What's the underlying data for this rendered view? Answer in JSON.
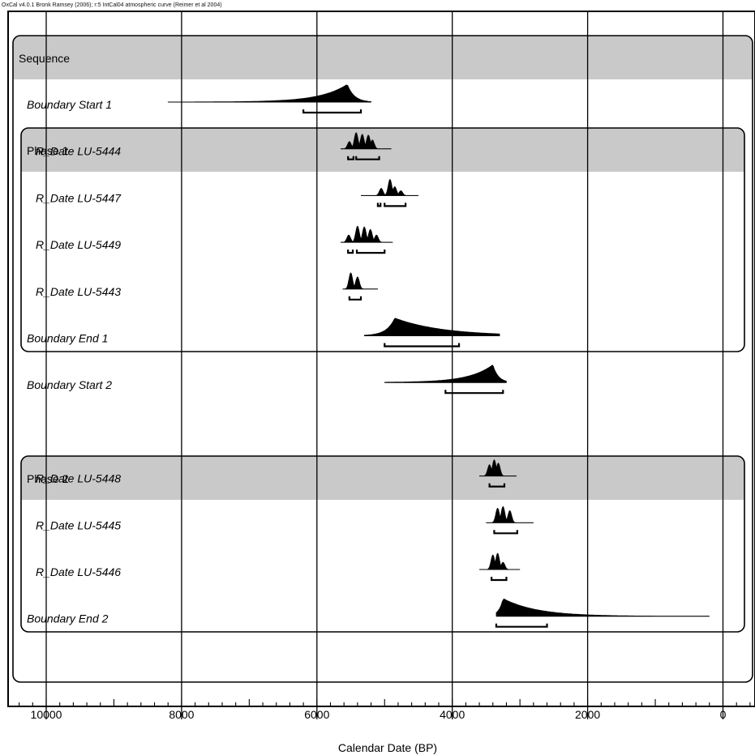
{
  "header": {
    "credit": "OxCal v4.0.1 Bronk Ramsey (2006); r:5 IntCal04 atmospheric curve (Reimer et al 2004)"
  },
  "chart_data": {
    "type": "area",
    "xlabel": "Calendar Date (BP)",
    "xlim": [
      10400,
      -500
    ],
    "x_reversed": true,
    "x_ticks": [
      10000,
      8000,
      6000,
      4000,
      2000,
      0
    ],
    "x_tick_labels": [
      "10000",
      "8000",
      "6000",
      "4000",
      "2000",
      "0"
    ],
    "grid": true,
    "groups": [
      {
        "label": "Sequence",
        "first_row": 0,
        "last_row": 12,
        "level": 0
      },
      {
        "label": "Phase 1",
        "first_row": 1,
        "last_row": 4,
        "level": 1
      },
      {
        "label": "Phase 2",
        "first_row": 8,
        "last_row": 10,
        "level": 1
      }
    ],
    "items": [
      {
        "name": "Boundary Start 1",
        "kind": "boundary",
        "level": 0,
        "line": [
          8200,
          5200
        ],
        "peak": 5550,
        "spread_old": 400,
        "spread_young": 100,
        "ranges": [
          [
            6200,
            5350
          ]
        ]
      },
      {
        "name": "R_Date LU-5444",
        "kind": "date",
        "level": 1,
        "line": [
          5650,
          4900
        ],
        "peaks": [
          [
            5520,
            0.45
          ],
          [
            5420,
            1.0
          ],
          [
            5330,
            0.9
          ],
          [
            5240,
            0.85
          ],
          [
            5180,
            0.55
          ]
        ],
        "ranges": [
          [
            5540,
            5460
          ],
          [
            5420,
            5080
          ]
        ]
      },
      {
        "name": "R_Date LU-5447",
        "kind": "date",
        "level": 1,
        "line": [
          5350,
          4500
        ],
        "peaks": [
          [
            5050,
            0.45
          ],
          [
            4920,
            1.0
          ],
          [
            4850,
            0.55
          ],
          [
            4760,
            0.3
          ]
        ],
        "ranges": [
          [
            5100,
            5060
          ],
          [
            5000,
            4690
          ]
        ]
      },
      {
        "name": "R_Date LU-5449",
        "kind": "date",
        "level": 1,
        "line": [
          5650,
          4880
        ],
        "peaks": [
          [
            5530,
            0.45
          ],
          [
            5400,
            1.0
          ],
          [
            5300,
            0.95
          ],
          [
            5210,
            0.8
          ],
          [
            5120,
            0.45
          ]
        ],
        "ranges": [
          [
            5540,
            5470
          ],
          [
            5410,
            5000
          ]
        ]
      },
      {
        "name": "R_Date LU-5443",
        "kind": "date",
        "level": 1,
        "line": [
          5620,
          5100
        ],
        "peaks": [
          [
            5500,
            1.0
          ],
          [
            5400,
            0.75
          ]
        ],
        "ranges": [
          [
            5520,
            5350
          ]
        ]
      },
      {
        "name": "Boundary End 1",
        "kind": "boundary",
        "level": 0,
        "line": [
          5300,
          3300
        ],
        "peak": 4850,
        "spread_old": 120,
        "spread_young": 700,
        "ranges": [
          [
            5000,
            3900
          ]
        ]
      },
      {
        "name": "Boundary Start 2",
        "kind": "boundary",
        "level": 0,
        "line": [
          5000,
          3200
        ],
        "peak": 3400,
        "spread_old": 350,
        "spread_young": 80,
        "ranges": [
          [
            4100,
            3250
          ]
        ]
      },
      {
        "name": "Phase 2",
        "kind": "phase-header",
        "level": 1
      },
      {
        "name": "R_Date LU-5448",
        "kind": "date",
        "level": 1,
        "line": [
          3600,
          3050
        ],
        "peaks": [
          [
            3450,
            0.7
          ],
          [
            3380,
            1.0
          ],
          [
            3320,
            0.8
          ]
        ],
        "ranges": [
          [
            3450,
            3230
          ]
        ]
      },
      {
        "name": "R_Date LU-5445",
        "kind": "date",
        "level": 1,
        "line": [
          3500,
          2800
        ],
        "peaks": [
          [
            3330,
            0.9
          ],
          [
            3250,
            1.0
          ],
          [
            3150,
            0.75
          ]
        ],
        "ranges": [
          [
            3380,
            3040
          ]
        ]
      },
      {
        "name": "R_Date LU-5446",
        "kind": "date",
        "level": 1,
        "line": [
          3600,
          3000
        ],
        "peaks": [
          [
            3400,
            0.9
          ],
          [
            3330,
            1.0
          ],
          [
            3250,
            0.45
          ]
        ],
        "ranges": [
          [
            3420,
            3200
          ]
        ]
      },
      {
        "name": "Boundary End 2",
        "kind": "boundary",
        "level": 0,
        "line": [
          3350,
          200
        ],
        "peak": 3250,
        "spread_old": 60,
        "spread_young": 500,
        "ranges": [
          [
            3350,
            2600
          ]
        ]
      }
    ]
  }
}
